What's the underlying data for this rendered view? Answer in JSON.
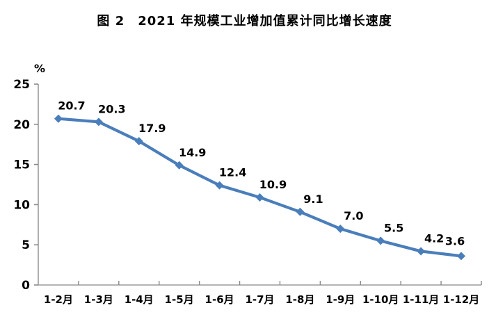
{
  "chart_data": {
    "type": "line",
    "title": "图 2　2021 年规模工业增加值累计同比增长速度",
    "categories": [
      "1-2月",
      "1-3月",
      "1-4月",
      "1-5月",
      "1-6月",
      "1-7月",
      "1-8月",
      "1-9月",
      "1-10月",
      "1-11月",
      "1-12月"
    ],
    "values": [
      20.7,
      20.3,
      17.9,
      14.9,
      12.4,
      10.9,
      9.1,
      7.0,
      5.5,
      4.2,
      3.6
    ],
    "data_labels": [
      "20.7",
      "20.3",
      "17.9",
      "14.9",
      "12.4",
      "10.9",
      "9.1",
      "7.0",
      "5.5",
      "4.2",
      "3.6"
    ],
    "unit_label": "%",
    "xlabel": "",
    "ylabel": "%",
    "ylim": [
      0,
      25
    ],
    "yticks": [
      0,
      5,
      10,
      15,
      20,
      25
    ],
    "grid": false,
    "legend": "none",
    "marker": "diamond",
    "line_color": "#4A7EBB",
    "axis_color": "#9b9b9b",
    "tick_color": "#8a8a8a",
    "text_color": "#000000"
  }
}
